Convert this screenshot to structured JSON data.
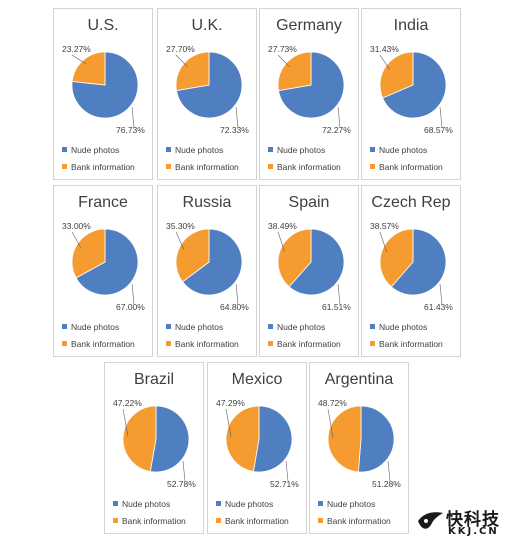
{
  "colors": {
    "nude": "#4f7fc0",
    "bank": "#f59b2f",
    "border": "#d4d4d4",
    "text": "#404040"
  },
  "legend": {
    "nude_label": "Nude photos",
    "bank_label": "Bank information"
  },
  "watermark": {
    "cn_text": "快科技",
    "en_text": "KKJ.CN",
    "icon": "bird-logo-icon"
  },
  "chart_data": [
    {
      "type": "pie",
      "title": "U.S.",
      "series": [
        {
          "name": "Nude photos",
          "value": 76.73,
          "label": "76.73%"
        },
        {
          "name": "Bank information",
          "value": 23.27,
          "label": "23.27%"
        }
      ]
    },
    {
      "type": "pie",
      "title": "U.K.",
      "series": [
        {
          "name": "Nude photos",
          "value": 72.33,
          "label": "72.33%"
        },
        {
          "name": "Bank information",
          "value": 27.7,
          "label": "27.70%"
        }
      ]
    },
    {
      "type": "pie",
      "title": "Germany",
      "series": [
        {
          "name": "Nude photos",
          "value": 72.27,
          "label": "72.27%"
        },
        {
          "name": "Bank information",
          "value": 27.73,
          "label": "27.73%"
        }
      ]
    },
    {
      "type": "pie",
      "title": "India",
      "series": [
        {
          "name": "Nude photos",
          "value": 68.57,
          "label": "68.57%"
        },
        {
          "name": "Bank information",
          "value": 31.43,
          "label": "31.43%"
        }
      ]
    },
    {
      "type": "pie",
      "title": "France",
      "series": [
        {
          "name": "Nude photos",
          "value": 67.0,
          "label": "67.00%"
        },
        {
          "name": "Bank information",
          "value": 33.0,
          "label": "33.00%"
        }
      ]
    },
    {
      "type": "pie",
      "title": "Russia",
      "series": [
        {
          "name": "Nude photos",
          "value": 64.8,
          "label": "64.80%"
        },
        {
          "name": "Bank information",
          "value": 35.3,
          "label": "35.30%"
        }
      ]
    },
    {
      "type": "pie",
      "title": "Spain",
      "series": [
        {
          "name": "Nude photos",
          "value": 61.51,
          "label": "61.51%"
        },
        {
          "name": "Bank information",
          "value": 38.49,
          "label": "38.49%"
        }
      ]
    },
    {
      "type": "pie",
      "title": "Czech Rep",
      "series": [
        {
          "name": "Nude photos",
          "value": 61.43,
          "label": "61.43%"
        },
        {
          "name": "Bank information",
          "value": 38.57,
          "label": "38.57%"
        }
      ]
    },
    {
      "type": "pie",
      "title": "Brazil",
      "series": [
        {
          "name": "Nude photos",
          "value": 52.78,
          "label": "52.78%"
        },
        {
          "name": "Bank information",
          "value": 47.22,
          "label": "47.22%"
        }
      ]
    },
    {
      "type": "pie",
      "title": "Mexico",
      "series": [
        {
          "name": "Nude photos",
          "value": 52.71,
          "label": "52.71%"
        },
        {
          "name": "Bank information",
          "value": 47.29,
          "label": "47.29%"
        }
      ]
    },
    {
      "type": "pie",
      "title": "Argentina",
      "series": [
        {
          "name": "Nude photos",
          "value": 51.28,
          "label": "51.28%"
        },
        {
          "name": "Bank information",
          "value": 48.72,
          "label": "48.72%"
        }
      ]
    }
  ]
}
